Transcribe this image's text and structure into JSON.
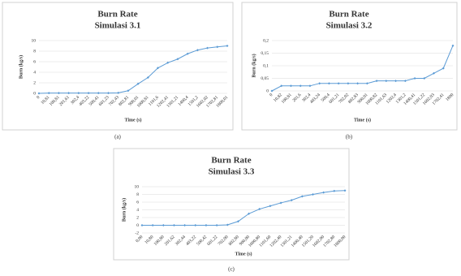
{
  "chart_data": [
    {
      "type": "line",
      "title": "Burn Rate",
      "subtitle": "Simulasi 3.1",
      "x_label": "Time (s)",
      "y_label": "Burn (kg/s)",
      "caption": "(a)",
      "categories": [
        "0",
        "10,81",
        "100,81",
        "201,61",
        "302,4",
        "403,22",
        "500,41",
        "601,23",
        "702,43",
        "802,81",
        "900,01",
        "1000,81",
        "1101,6",
        "1202,41",
        "1301,21",
        "1400,4",
        "1501,2",
        "1602,02",
        "1702,81",
        "1800,01"
      ],
      "values": [
        0,
        0.05,
        0.05,
        0.05,
        0.05,
        0.05,
        0.05,
        0.05,
        0.1,
        0.5,
        1.8,
        3,
        4.8,
        5.8,
        6.5,
        7.5,
        8.2,
        8.6,
        8.8,
        9
      ],
      "color": "#5b9bd5",
      "ylim": [
        0,
        10
      ],
      "yticks": [
        0,
        2,
        4,
        6,
        8,
        10
      ],
      "grid": true
    },
    {
      "type": "line",
      "title": "Burn Rate",
      "subtitle": "Simulasi 3.2",
      "x_label": "Time (s)",
      "y_label": "Burn (kg/s)",
      "caption": "(b)",
      "categories": [
        "0",
        "10,82",
        "100,81",
        "201,6",
        "302,4",
        "403,24",
        "500,4",
        "601,21",
        "702,02",
        "802,83",
        "900,01",
        "1000,82",
        "1101,63",
        "1202,4",
        "1301,2",
        "1400,41",
        "1501,22",
        "1602,03",
        "1702,41",
        "1800"
      ],
      "values": [
        0,
        0.02,
        0.02,
        0.02,
        0.02,
        0.03,
        0.03,
        0.03,
        0.03,
        0.03,
        0.03,
        0.04,
        0.04,
        0.04,
        0.04,
        0.05,
        0.05,
        0.07,
        0.09,
        0.18
      ],
      "color": "#5b9bd5",
      "ylim": [
        0,
        0.2
      ],
      "yticks": [
        0,
        {
          "value": 0.05,
          "label": "0,05"
        },
        {
          "value": 0.1,
          "label": "0,1"
        },
        {
          "value": 0.15,
          "label": "0,15"
        },
        {
          "value": 0.2,
          "label": "0,2"
        }
      ],
      "grid": true
    },
    {
      "type": "line",
      "title": "Burn Rate",
      "subtitle": "Simulasi 3.3",
      "x_label": "Time (s)",
      "y_label": "Burn (kg/s)",
      "caption": "(c)",
      "categories": [
        "0,00",
        "10,80",
        "100,80",
        "201,62",
        "302,44",
        "403,22",
        "500,42",
        "601,22",
        "702,00",
        "802,80",
        "900,00",
        "1000,80",
        "1101,60",
        "1202,40",
        "1301,21",
        "1400,40",
        "1501,20",
        "1602,00",
        "1702,80",
        "1800,00"
      ],
      "values": [
        0,
        0,
        0,
        0,
        0,
        0,
        0,
        0,
        0.1,
        1,
        3,
        4.2,
        5,
        5.8,
        6.5,
        7.5,
        8,
        8.5,
        8.9,
        9
      ],
      "color": "#5b9bd5",
      "ylim": [
        -2,
        10
      ],
      "yticks": [
        -2,
        0,
        2,
        4,
        6,
        8,
        10
      ],
      "grid": true
    }
  ]
}
